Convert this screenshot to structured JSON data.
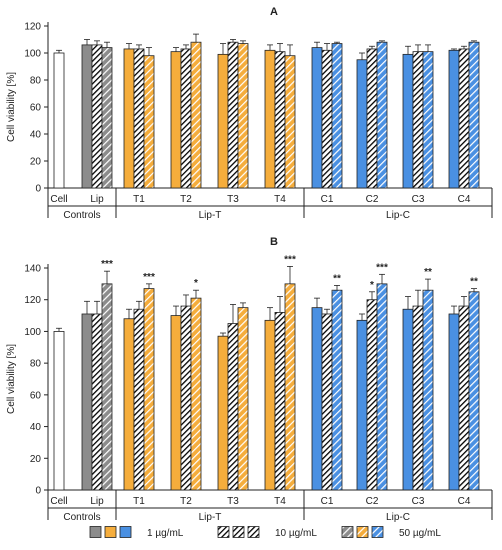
{
  "colors": {
    "control_dark": "#8c8c8c",
    "control_white": "#ffffff",
    "orange": "#f5ad3c",
    "blue": "#4a90e2",
    "axis": "#222222"
  },
  "legend": {
    "items": [
      {
        "label": "1 µg/mL",
        "pattern": "solid"
      },
      {
        "label": "10 µg/mL",
        "pattern": "dense"
      },
      {
        "label": "50 µg/mL",
        "pattern": "light"
      }
    ]
  },
  "chart_data": [
    {
      "type": "bar",
      "panel_label": "A",
      "ylabel": "Cell viability [%]",
      "ylim": [
        0,
        120
      ],
      "yticks": [
        0,
        20,
        40,
        60,
        80,
        100,
        120
      ],
      "groups": [
        {
          "label": "Cell",
          "color": "control_white",
          "bars": [
            {
              "value": 100,
              "err": 2,
              "sig": ""
            }
          ]
        },
        {
          "label": "Lip",
          "color": "control_dark",
          "bars": [
            {
              "value": 106,
              "err": 4,
              "sig": ""
            },
            {
              "value": 106,
              "err": 3,
              "sig": ""
            },
            {
              "value": 104,
              "err": 4,
              "sig": ""
            }
          ]
        },
        {
          "label": "T1",
          "color": "orange",
          "bars": [
            {
              "value": 103,
              "err": 4,
              "sig": ""
            },
            {
              "value": 103,
              "err": 3,
              "sig": ""
            },
            {
              "value": 98,
              "err": 6,
              "sig": ""
            }
          ]
        },
        {
          "label": "T2",
          "color": "orange",
          "bars": [
            {
              "value": 101,
              "err": 3,
              "sig": ""
            },
            {
              "value": 103,
              "err": 3,
              "sig": ""
            },
            {
              "value": 108,
              "err": 6,
              "sig": ""
            }
          ]
        },
        {
          "label": "T3",
          "color": "orange",
          "bars": [
            {
              "value": 99,
              "err": 8,
              "sig": ""
            },
            {
              "value": 108,
              "err": 2,
              "sig": ""
            },
            {
              "value": 107,
              "err": 2,
              "sig": ""
            }
          ]
        },
        {
          "label": "T4",
          "color": "orange",
          "bars": [
            {
              "value": 102,
              "err": 4,
              "sig": ""
            },
            {
              "value": 101,
              "err": 6,
              "sig": ""
            },
            {
              "value": 98,
              "err": 8,
              "sig": ""
            }
          ]
        },
        {
          "label": "C1",
          "color": "blue",
          "bars": [
            {
              "value": 104,
              "err": 4,
              "sig": ""
            },
            {
              "value": 102,
              "err": 5,
              "sig": ""
            },
            {
              "value": 107,
              "err": 1,
              "sig": ""
            }
          ]
        },
        {
          "label": "C2",
          "color": "blue",
          "bars": [
            {
              "value": 95,
              "err": 5,
              "sig": ""
            },
            {
              "value": 103,
              "err": 2,
              "sig": ""
            },
            {
              "value": 108,
              "err": 1,
              "sig": ""
            }
          ]
        },
        {
          "label": "C3",
          "color": "blue",
          "bars": [
            {
              "value": 99,
              "err": 6,
              "sig": ""
            },
            {
              "value": 101,
              "err": 5,
              "sig": ""
            },
            {
              "value": 101,
              "err": 5,
              "sig": ""
            }
          ]
        },
        {
          "label": "C4",
          "color": "blue",
          "bars": [
            {
              "value": 102,
              "err": 1,
              "sig": ""
            },
            {
              "value": 103,
              "err": 2,
              "sig": ""
            },
            {
              "value": 108,
              "err": 1,
              "sig": ""
            }
          ]
        }
      ],
      "categories": [
        {
          "label": "Controls",
          "groups": [
            "Cell",
            "Lip"
          ]
        },
        {
          "label": "Lip-T",
          "groups": [
            "T1",
            "T2",
            "T3",
            "T4"
          ]
        },
        {
          "label": "Lip-C",
          "groups": [
            "C1",
            "C2",
            "C3",
            "C4"
          ]
        }
      ]
    },
    {
      "type": "bar",
      "panel_label": "B",
      "ylabel": "Cell viability [%]",
      "ylim": [
        0,
        140
      ],
      "yticks": [
        0,
        20,
        40,
        60,
        80,
        100,
        120,
        140
      ],
      "groups": [
        {
          "label": "Cell",
          "color": "control_white",
          "bars": [
            {
              "value": 100,
              "err": 2,
              "sig": ""
            }
          ]
        },
        {
          "label": "Lip",
          "color": "control_dark",
          "bars": [
            {
              "value": 111,
              "err": 8,
              "sig": ""
            },
            {
              "value": 111,
              "err": 8,
              "sig": ""
            },
            {
              "value": 130,
              "err": 8,
              "sig": "***"
            }
          ]
        },
        {
          "label": "T1",
          "color": "orange",
          "bars": [
            {
              "value": 108,
              "err": 6,
              "sig": ""
            },
            {
              "value": 114,
              "err": 5,
              "sig": ""
            },
            {
              "value": 127,
              "err": 3,
              "sig": "***"
            }
          ]
        },
        {
          "label": "T2",
          "color": "orange",
          "bars": [
            {
              "value": 110,
              "err": 6,
              "sig": ""
            },
            {
              "value": 116,
              "err": 7,
              "sig": ""
            },
            {
              "value": 121,
              "err": 5,
              "sig": "*"
            }
          ]
        },
        {
          "label": "T3",
          "color": "orange",
          "bars": [
            {
              "value": 97,
              "err": 2,
              "sig": ""
            },
            {
              "value": 105,
              "err": 12,
              "sig": ""
            },
            {
              "value": 115,
              "err": 3,
              "sig": ""
            }
          ]
        },
        {
          "label": "T4",
          "color": "orange",
          "bars": [
            {
              "value": 107,
              "err": 8,
              "sig": ""
            },
            {
              "value": 112,
              "err": 10,
              "sig": ""
            },
            {
              "value": 130,
              "err": 11,
              "sig": "***"
            }
          ]
        },
        {
          "label": "C1",
          "color": "blue",
          "bars": [
            {
              "value": 115,
              "err": 6,
              "sig": ""
            },
            {
              "value": 111,
              "err": 3,
              "sig": ""
            },
            {
              "value": 126,
              "err": 3,
              "sig": "**"
            }
          ]
        },
        {
          "label": "C2",
          "color": "blue",
          "bars": [
            {
              "value": 107,
              "err": 4,
              "sig": ""
            },
            {
              "value": 120,
              "err": 5,
              "sig": "*"
            },
            {
              "value": 130,
              "err": 6,
              "sig": "***"
            }
          ]
        },
        {
          "label": "C3",
          "color": "blue",
          "bars": [
            {
              "value": 114,
              "err": 8,
              "sig": ""
            },
            {
              "value": 116,
              "err": 10,
              "sig": ""
            },
            {
              "value": 126,
              "err": 7,
              "sig": "**"
            }
          ]
        },
        {
          "label": "C4",
          "color": "blue",
          "bars": [
            {
              "value": 111,
              "err": 5,
              "sig": ""
            },
            {
              "value": 116,
              "err": 6,
              "sig": ""
            },
            {
              "value": 125,
              "err": 2,
              "sig": "**"
            }
          ]
        }
      ],
      "categories": [
        {
          "label": "Controls",
          "groups": [
            "Cell",
            "Lip"
          ]
        },
        {
          "label": "Lip-T",
          "groups": [
            "T1",
            "T2",
            "T3",
            "T4"
          ]
        },
        {
          "label": "Lip-C",
          "groups": [
            "C1",
            "C2",
            "C3",
            "C4"
          ]
        }
      ]
    }
  ]
}
